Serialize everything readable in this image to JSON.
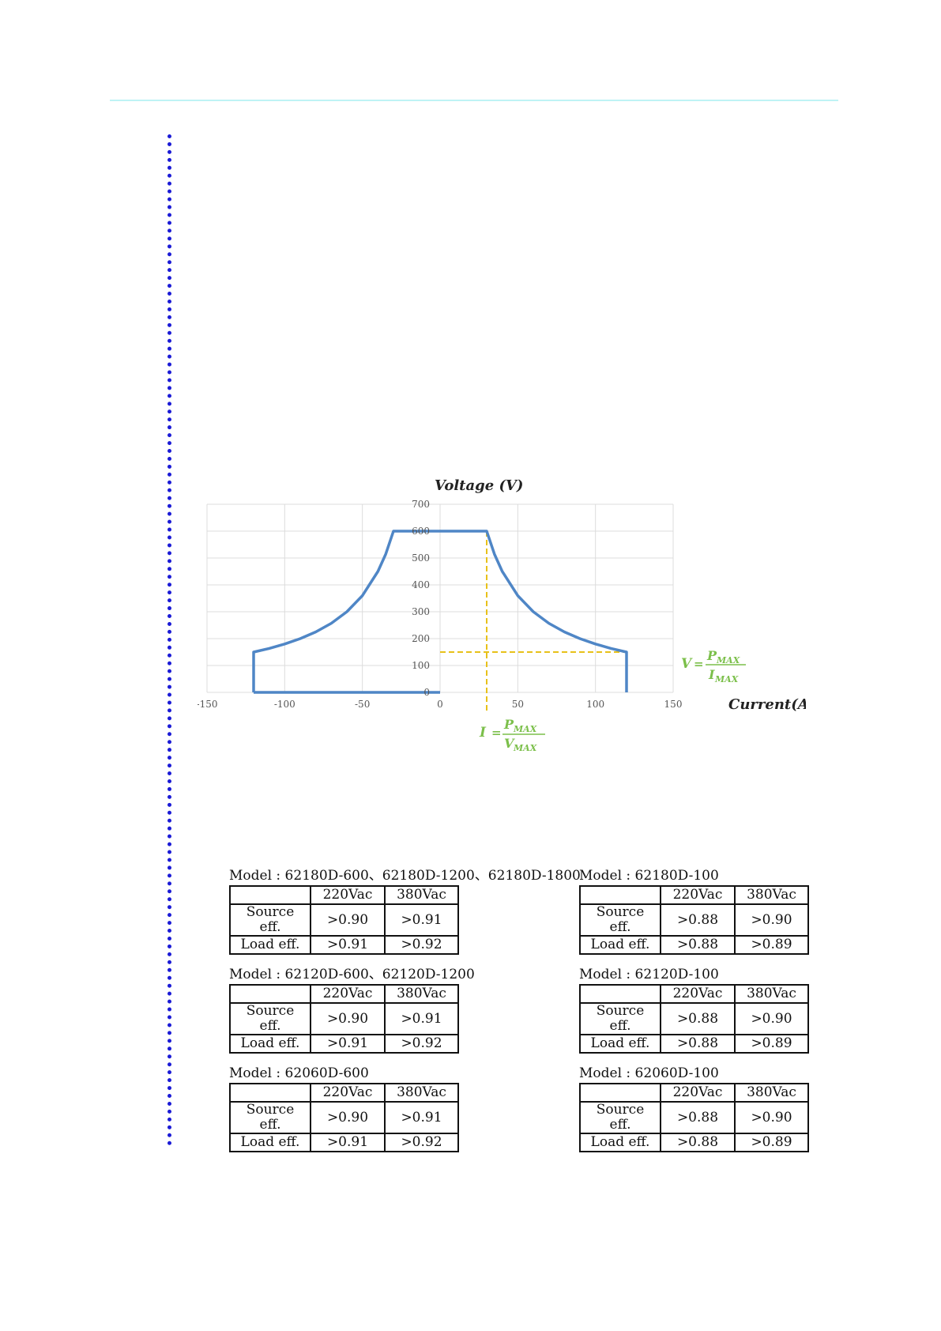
{
  "chart_data": {
    "type": "line",
    "ylabel": "Voltage (V)",
    "xlabel": "Current(A)",
    "xlim": [
      -150,
      150
    ],
    "ylim": [
      0,
      700
    ],
    "x_ticks": [
      "-150",
      "-100",
      "-50",
      "0",
      "50",
      "100",
      "150"
    ],
    "y_ticks": [
      "700",
      "600",
      "500",
      "400",
      "300",
      "200",
      "100",
      "0"
    ],
    "grid": true,
    "series": [
      {
        "color": "#4f86c6",
        "points": [
          [
            -120,
            0
          ],
          [
            -120,
            150
          ],
          [
            -110,
            163.6
          ],
          [
            -100,
            180
          ],
          [
            -90,
            200
          ],
          [
            -80,
            225
          ],
          [
            -70,
            257.1
          ],
          [
            -60,
            300
          ],
          [
            -50,
            360
          ],
          [
            -40,
            450
          ],
          [
            -35,
            514.3
          ],
          [
            -30,
            600
          ],
          [
            30,
            600
          ],
          [
            35,
            514.3
          ],
          [
            40,
            450
          ],
          [
            50,
            360
          ],
          [
            60,
            300
          ],
          [
            70,
            257.1
          ],
          [
            80,
            225
          ],
          [
            90,
            200
          ],
          [
            100,
            180
          ],
          [
            110,
            163.6
          ],
          [
            120,
            150
          ],
          [
            120,
            0
          ]
        ],
        "bottom_return": [
          [
            -120,
            0
          ],
          [
            0,
            0
          ]
        ]
      }
    ],
    "guides": {
      "color": "#e8c11a",
      "x": 30,
      "y": 150
    },
    "annotations": {
      "v_formula": {
        "lhs": "V",
        "num": "P",
        "num_sub": "MAX",
        "den": "I",
        "den_sub": "MAX"
      },
      "i_formula": {
        "lhs": "I",
        "num": "P",
        "num_sub": "MAX",
        "den": "V",
        "den_sub": "MAX"
      }
    }
  },
  "efficiency_tables": [
    {
      "model": "Model : 62180D-600、62180D-1200、62180D-1800",
      "header": [
        "",
        "220Vac",
        "380Vac"
      ],
      "rows": [
        [
          "Source eff.",
          ">0.90",
          ">0.91"
        ],
        [
          "Load eff.",
          ">0.91",
          ">0.92"
        ]
      ]
    },
    {
      "model": "Model : 62180D-100",
      "header": [
        "",
        "220Vac",
        "380Vac"
      ],
      "rows": [
        [
          "Source eff.",
          ">0.88",
          ">0.90"
        ],
        [
          "Load eff.",
          ">0.88",
          ">0.89"
        ]
      ]
    },
    {
      "model": "Model : 62120D-600、62120D-1200",
      "header": [
        "",
        "220Vac",
        "380Vac"
      ],
      "rows": [
        [
          "Source eff.",
          ">0.90",
          ">0.91"
        ],
        [
          "Load eff.",
          ">0.91",
          ">0.92"
        ]
      ]
    },
    {
      "model": "Model : 62120D-100",
      "header": [
        "",
        "220Vac",
        "380Vac"
      ],
      "rows": [
        [
          "Source eff.",
          ">0.88",
          ">0.90"
        ],
        [
          "Load eff.",
          ">0.88",
          ">0.89"
        ]
      ]
    },
    {
      "model": "Model : 62060D-600",
      "header": [
        "",
        "220Vac",
        "380Vac"
      ],
      "rows": [
        [
          "Source eff.",
          ">0.90",
          ">0.91"
        ],
        [
          "Load eff.",
          ">0.91",
          ">0.92"
        ]
      ]
    },
    {
      "model": "Model : 62060D-100",
      "header": [
        "",
        "220Vac",
        "380Vac"
      ],
      "rows": [
        [
          "Source eff.",
          ">0.88",
          ">0.90"
        ],
        [
          "Load eff.",
          ">0.88",
          ">0.89"
        ]
      ]
    }
  ]
}
